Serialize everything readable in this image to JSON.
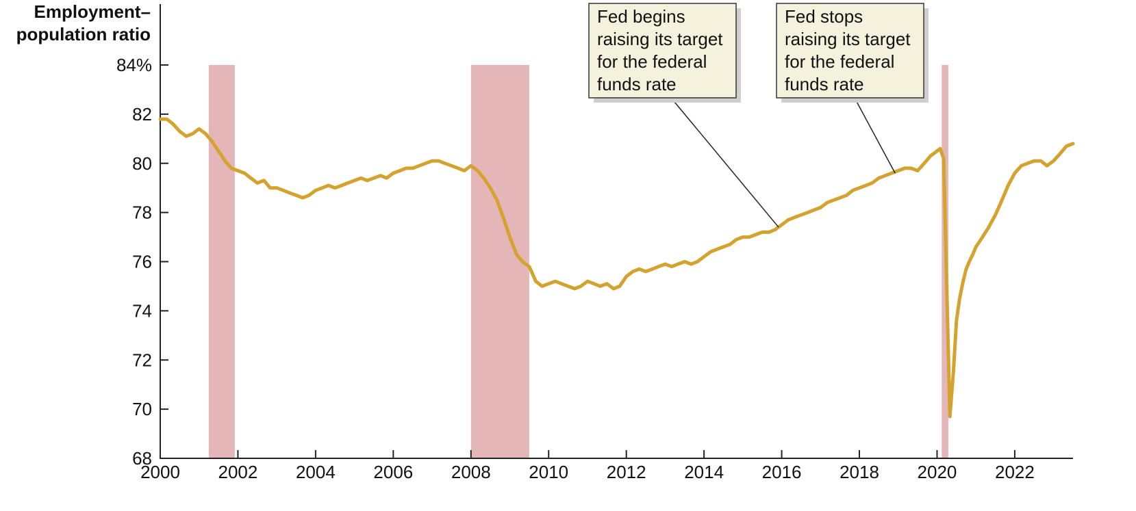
{
  "chart_data": {
    "type": "line",
    "ylabel_lines": [
      "Employment–",
      "population ratio"
    ],
    "xlim": [
      2000,
      2023.5
    ],
    "ylim": [
      68,
      84
    ],
    "x_ticks": [
      {
        "value": 2000,
        "label": "2000"
      },
      {
        "value": 2002,
        "label": "2002"
      },
      {
        "value": 2004,
        "label": "2004"
      },
      {
        "value": 2006,
        "label": "2006"
      },
      {
        "value": 2008,
        "label": "2008"
      },
      {
        "value": 2010,
        "label": "2010"
      },
      {
        "value": 2012,
        "label": "2012"
      },
      {
        "value": 2014,
        "label": "2014"
      },
      {
        "value": 2016,
        "label": "2016"
      },
      {
        "value": 2018,
        "label": "2018"
      },
      {
        "value": 2020,
        "label": "2020"
      },
      {
        "value": 2022,
        "label": "2022"
      }
    ],
    "y_ticks": [
      {
        "value": 84,
        "label": "84%"
      },
      {
        "value": 82,
        "label": "82"
      },
      {
        "value": 80,
        "label": "80"
      },
      {
        "value": 78,
        "label": "78"
      },
      {
        "value": 76,
        "label": "76"
      },
      {
        "value": 74,
        "label": "74"
      },
      {
        "value": 72,
        "label": "72"
      },
      {
        "value": 70,
        "label": "70"
      },
      {
        "value": 68,
        "label": "68"
      }
    ],
    "recessions": [
      {
        "start": 2001.25,
        "end": 2001.92
      },
      {
        "start": 2008.0,
        "end": 2009.5
      },
      {
        "start": 2020.12,
        "end": 2020.29
      }
    ],
    "series": [
      {
        "color": "#D4A22F",
        "x": [
          2000.0,
          2000.17,
          2000.33,
          2000.5,
          2000.67,
          2000.83,
          2001.0,
          2001.17,
          2001.33,
          2001.5,
          2001.67,
          2001.83,
          2002.0,
          2002.17,
          2002.33,
          2002.5,
          2002.67,
          2002.83,
          2003.0,
          2003.17,
          2003.33,
          2003.5,
          2003.67,
          2003.83,
          2004.0,
          2004.17,
          2004.33,
          2004.5,
          2004.67,
          2004.83,
          2005.0,
          2005.17,
          2005.33,
          2005.5,
          2005.67,
          2005.83,
          2006.0,
          2006.17,
          2006.33,
          2006.5,
          2006.67,
          2006.83,
          2007.0,
          2007.17,
          2007.33,
          2007.5,
          2007.67,
          2007.83,
          2008.0,
          2008.17,
          2008.33,
          2008.5,
          2008.67,
          2008.83,
          2009.0,
          2009.17,
          2009.33,
          2009.5,
          2009.67,
          2009.83,
          2010.0,
          2010.17,
          2010.33,
          2010.5,
          2010.67,
          2010.83,
          2011.0,
          2011.17,
          2011.33,
          2011.5,
          2011.67,
          2011.83,
          2012.0,
          2012.17,
          2012.33,
          2012.5,
          2012.67,
          2012.83,
          2013.0,
          2013.17,
          2013.33,
          2013.5,
          2013.67,
          2013.83,
          2014.0,
          2014.17,
          2014.33,
          2014.5,
          2014.67,
          2014.83,
          2015.0,
          2015.17,
          2015.33,
          2015.5,
          2015.67,
          2015.83,
          2016.0,
          2016.17,
          2016.33,
          2016.5,
          2016.67,
          2016.83,
          2017.0,
          2017.17,
          2017.33,
          2017.5,
          2017.67,
          2017.83,
          2018.0,
          2018.17,
          2018.33,
          2018.5,
          2018.67,
          2018.83,
          2019.0,
          2019.17,
          2019.33,
          2019.5,
          2019.67,
          2019.83,
          2020.0,
          2020.08,
          2020.17,
          2020.25,
          2020.33,
          2020.42,
          2020.5,
          2020.58,
          2020.67,
          2020.75,
          2020.83,
          2020.92,
          2021.0,
          2021.17,
          2021.33,
          2021.5,
          2021.67,
          2021.83,
          2022.0,
          2022.17,
          2022.33,
          2022.5,
          2022.67,
          2022.83,
          2023.0,
          2023.17,
          2023.33,
          2023.5
        ],
        "y": [
          81.8,
          81.8,
          81.6,
          81.3,
          81.1,
          81.2,
          81.4,
          81.2,
          80.9,
          80.5,
          80.1,
          79.8,
          79.7,
          79.6,
          79.4,
          79.2,
          79.3,
          79.0,
          79.0,
          78.9,
          78.8,
          78.7,
          78.6,
          78.7,
          78.9,
          79.0,
          79.1,
          79.0,
          79.1,
          79.2,
          79.3,
          79.4,
          79.3,
          79.4,
          79.5,
          79.4,
          79.6,
          79.7,
          79.8,
          79.8,
          79.9,
          80.0,
          80.1,
          80.1,
          80.0,
          79.9,
          79.8,
          79.7,
          79.9,
          79.7,
          79.4,
          79.0,
          78.5,
          77.8,
          77.0,
          76.3,
          76.0,
          75.8,
          75.2,
          75.0,
          75.1,
          75.2,
          75.1,
          75.0,
          74.9,
          75.0,
          75.2,
          75.1,
          75.0,
          75.1,
          74.9,
          75.0,
          75.4,
          75.6,
          75.7,
          75.6,
          75.7,
          75.8,
          75.9,
          75.8,
          75.9,
          76.0,
          75.9,
          76.0,
          76.2,
          76.4,
          76.5,
          76.6,
          76.7,
          76.9,
          77.0,
          77.0,
          77.1,
          77.2,
          77.2,
          77.3,
          77.5,
          77.7,
          77.8,
          77.9,
          78.0,
          78.1,
          78.2,
          78.4,
          78.5,
          78.6,
          78.7,
          78.9,
          79.0,
          79.1,
          79.2,
          79.4,
          79.5,
          79.6,
          79.7,
          79.8,
          79.8,
          79.7,
          80.0,
          80.3,
          80.5,
          80.6,
          80.2,
          75.0,
          69.7,
          71.5,
          73.6,
          74.5,
          75.2,
          75.7,
          76.0,
          76.3,
          76.6,
          77.0,
          77.4,
          77.9,
          78.5,
          79.1,
          79.6,
          79.9,
          80.0,
          80.1,
          80.1,
          79.9,
          80.1,
          80.4,
          80.7,
          80.8
        ]
      }
    ],
    "annotations": [
      {
        "lines": [
          "Fed begins",
          "raising its target",
          "for the federal",
          "funds rate"
        ],
        "point": {
          "x": 2015.92,
          "y": 77.4
        }
      },
      {
        "lines": [
          "Fed stops",
          "raising its target",
          "for the federal",
          "funds rate"
        ],
        "point": {
          "x": 2018.92,
          "y": 79.6
        }
      }
    ],
    "colors": {
      "line": "#D4A22F",
      "recession": "#E5B6B7",
      "callout_fill": "#F4F2DD",
      "callout_shadow": "#CFCFCF",
      "axis": "#222222"
    }
  }
}
